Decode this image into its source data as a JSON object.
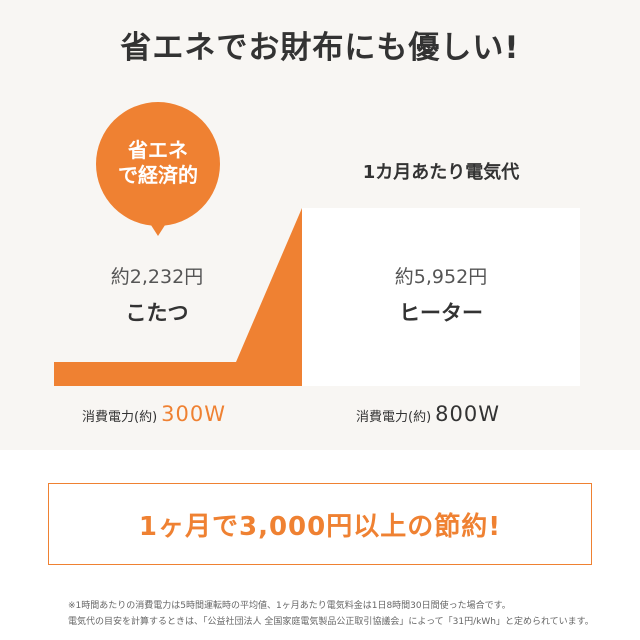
{
  "title": "省エネでお財布にも優しい!",
  "badge": {
    "line1": "省エネ",
    "line2": "で経済的"
  },
  "subtitle": "1カ月あたり電気代",
  "kotatsu": {
    "price": "約2,232円",
    "name": "こたつ",
    "power_label": "消費電力(約)",
    "power": "300W"
  },
  "heater": {
    "price": "約5,952円",
    "name": "ヒーター",
    "power_label": "消費電力(約)",
    "power": "800W"
  },
  "savings": "1ヶ月で3,000円以上の節約!",
  "notes": [
    "※1時間あたりの消費電力は5時間運転時の平均値、1ヶ月あたり電気料金は1日8時間30日間使った場合です。",
    "電気代の目安を計算するときは、「公益社団法人 全国家庭電気製品公正取引協議会」によって「31円/kWh」と定められています。"
  ],
  "colors": {
    "accent": "#ef8132",
    "background": "#f8f6f3"
  }
}
